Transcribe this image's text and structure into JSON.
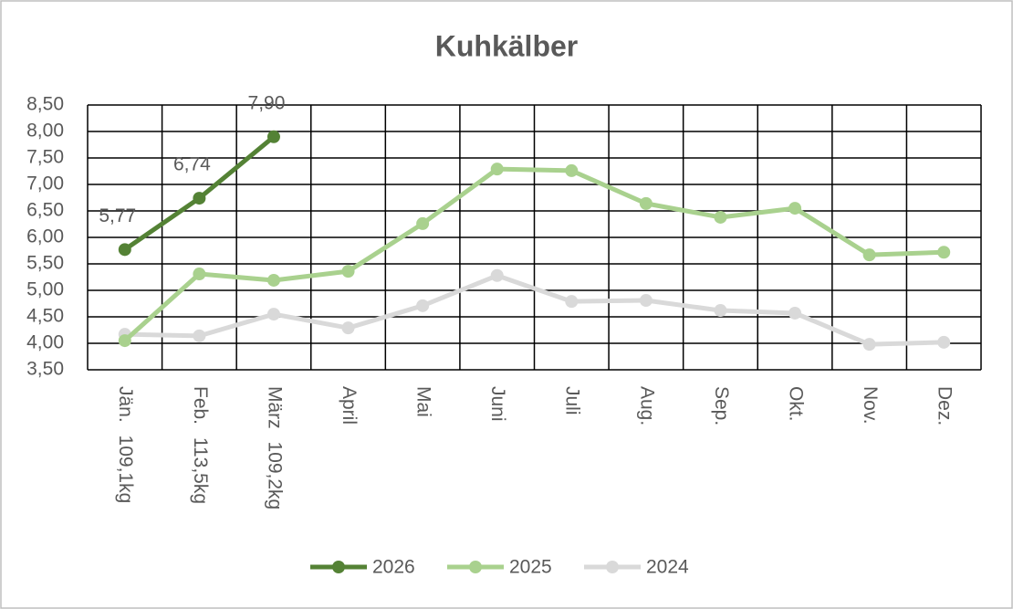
{
  "chart_data": {
    "type": "line",
    "title": "Kuhkälber",
    "categories": [
      "Jän. 109,1kg",
      "Feb. 113,5kg",
      "März 109,2kg",
      "April",
      "Mai",
      "Juni",
      "Juli",
      "Aug.",
      "Sep.",
      "Okt.",
      "Nov.",
      "Dez."
    ],
    "series": [
      {
        "name": "2026",
        "color": "#548235",
        "values": [
          5.77,
          6.74,
          7.9,
          null,
          null,
          null,
          null,
          null,
          null,
          null,
          null,
          null
        ],
        "value_labels": [
          "5,77",
          "6,74",
          "7,90",
          null,
          null,
          null,
          null,
          null,
          null,
          null,
          null,
          null
        ]
      },
      {
        "name": "2025",
        "color": "#a9d18e",
        "values": [
          4.05,
          5.31,
          5.19,
          5.36,
          6.26,
          7.29,
          7.26,
          6.64,
          6.38,
          6.55,
          5.67,
          5.72
        ]
      },
      {
        "name": "2024",
        "color": "#d9d9d9",
        "values": [
          4.17,
          4.14,
          4.55,
          4.29,
          4.71,
          5.28,
          4.79,
          4.81,
          4.62,
          4.57,
          3.98,
          4.02
        ]
      }
    ],
    "ylim": [
      3.5,
      8.5
    ],
    "yticks": [
      {
        "value": 3.5,
        "label": "3,50"
      },
      {
        "value": 4.0,
        "label": "4,00"
      },
      {
        "value": 4.5,
        "label": "4,50"
      },
      {
        "value": 5.0,
        "label": "5,00"
      },
      {
        "value": 5.5,
        "label": "5,50"
      },
      {
        "value": 6.0,
        "label": "6,00"
      },
      {
        "value": 6.5,
        "label": "6,50"
      },
      {
        "value": 7.0,
        "label": "7,00"
      },
      {
        "value": 7.5,
        "label": "7,50"
      },
      {
        "value": 8.0,
        "label": "8,00"
      },
      {
        "value": 8.5,
        "label": "8,50"
      }
    ],
    "grid": true,
    "legend": "bottom"
  }
}
